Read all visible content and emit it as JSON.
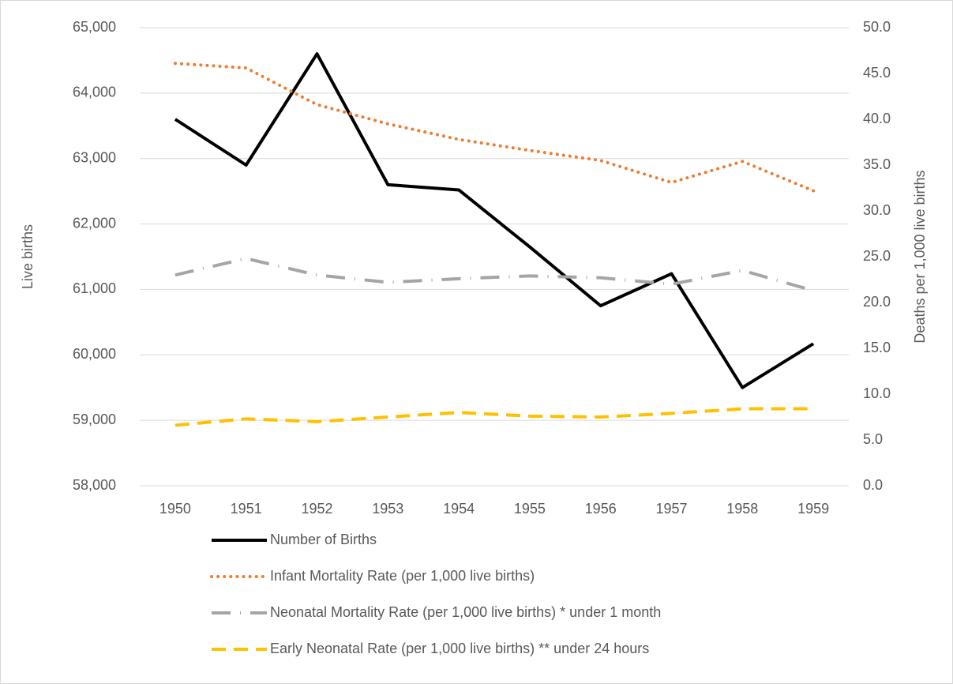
{
  "chart_data": {
    "type": "line",
    "categories": [
      "1950",
      "1951",
      "1952",
      "1953",
      "1954",
      "1955",
      "1956",
      "1957",
      "1958",
      "1959"
    ],
    "y_label": "Live births",
    "y2_label": "Deaths per 1,000 live births",
    "ylim": [
      58000,
      65000
    ],
    "yticks": [
      {
        "value": 58000,
        "label": "58,000"
      },
      {
        "value": 59000,
        "label": "59,000"
      },
      {
        "value": 60000,
        "label": "60,000"
      },
      {
        "value": 61000,
        "label": "61,000"
      },
      {
        "value": 62000,
        "label": "62,000"
      },
      {
        "value": 63000,
        "label": "63,000"
      },
      {
        "value": 64000,
        "label": "64,000"
      },
      {
        "value": 65000,
        "label": "65,000"
      }
    ],
    "y2lim": [
      0,
      50
    ],
    "y2ticks": [
      {
        "value": 0,
        "label": "0.0"
      },
      {
        "value": 5,
        "label": "5.0"
      },
      {
        "value": 10,
        "label": "10.0"
      },
      {
        "value": 15,
        "label": "15.0"
      },
      {
        "value": 20,
        "label": "20.0"
      },
      {
        "value": 25,
        "label": "25.0"
      },
      {
        "value": 30,
        "label": "30.0"
      },
      {
        "value": 35,
        "label": "35.0"
      },
      {
        "value": 40,
        "label": "40.0"
      },
      {
        "value": 45,
        "label": "45.0"
      },
      {
        "value": 50,
        "label": "50.0"
      }
    ],
    "grid": true,
    "legend": "bottom",
    "series": [
      {
        "name": "Number of Births",
        "color": "#000000",
        "dash": "solid",
        "axis": "y",
        "values": [
          63600,
          62900,
          64600,
          62600,
          62520,
          61650,
          60750,
          61240,
          59500,
          60170
        ]
      },
      {
        "name": "Infant Mortality Rate (per 1,000 live births)",
        "color": "#ED7D31",
        "dash": "dotted",
        "axis": "y2",
        "values": [
          46.1,
          45.6,
          41.6,
          39.5,
          37.8,
          36.6,
          35.5,
          33.1,
          35.4,
          32.2
        ]
      },
      {
        "name": "Neonatal Mortality Rate (per 1,000 live births) * under 1 month",
        "color": "#A5A5A5",
        "dash": "dashdot",
        "axis": "y2",
        "values": [
          23.0,
          24.8,
          23.0,
          22.2,
          22.6,
          22.9,
          22.7,
          22.0,
          23.5,
          21.3
        ]
      },
      {
        "name": "Early Neonatal Rate (per 1,000 live births) ** under 24 hours",
        "color": "#FFC000",
        "dash": "dashed",
        "axis": "y2",
        "values": [
          6.6,
          7.3,
          7.0,
          7.5,
          8.0,
          7.6,
          7.5,
          7.9,
          8.4,
          8.4
        ]
      }
    ]
  }
}
